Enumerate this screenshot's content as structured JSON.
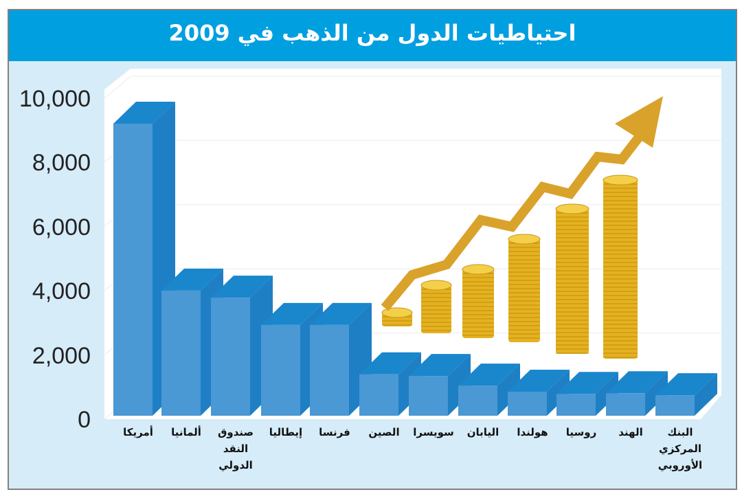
{
  "title": "احتياطيات الدول من الذهب في 2009",
  "colors": {
    "header": "#009fe0",
    "panel": "#d6ecf8",
    "bar_front": "#4a98d4",
    "bar_side": "#1f7fc4",
    "bar_top": "#1a86cc",
    "arrow": "#d9a22a",
    "border": "#808080"
  },
  "y_axis": {
    "ticks": [
      "0",
      "2,000",
      "4,000",
      "6,000",
      "8,000",
      "10,000"
    ]
  },
  "chart_data": {
    "type": "bar",
    "title": "احتياطيات الدول من الذهب في 2009",
    "xlabel": "",
    "ylabel": "",
    "ylim": [
      0,
      10000
    ],
    "grid": true,
    "categories": [
      "أمريكا",
      "ألمانيا",
      "صندوق النقد الدولي",
      "إيطاليا",
      "فرنسا",
      "الصين",
      "سويسرا",
      "اليابان",
      "هولندا",
      "روسيا",
      "الهند",
      "البنك المركزي الأوروبي"
    ],
    "values": [
      9100,
      3900,
      3680,
      2830,
      2830,
      1290,
      1240,
      940,
      750,
      680,
      700,
      640
    ],
    "decoration": "gold coin stacks with rising arrow (illustration)"
  },
  "x_labels": [
    "أمريكا",
    "ألمانيا",
    "صندوق\nالنقد\nالدولي",
    "إيطاليا",
    "فرنسا",
    "الصين",
    "سويسرا",
    "اليابان",
    "هولندا",
    "روسيا",
    "الهند",
    "البنك\nالمركزي\nالأوروبي"
  ]
}
